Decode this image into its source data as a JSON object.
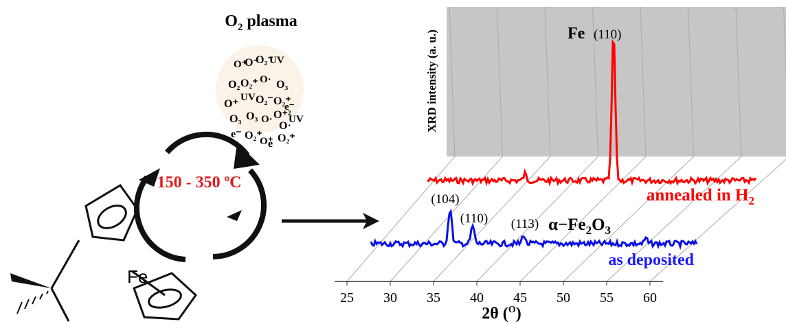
{
  "plasma": {
    "title": {
      "base": "O",
      "sub": "2",
      "rest": " plasma"
    },
    "species": [
      "O⁺",
      "O⁻",
      "O₂⁻",
      "UV",
      "O₂",
      "O₂⁺",
      "O·",
      "O₃",
      "O⁺",
      "UV",
      "O₂⁻",
      "O₂⁺",
      "e⁻",
      "O₃",
      "O₃",
      "O·",
      "O⁺²",
      "O·",
      "UV",
      "e⁻",
      "O₂⁺",
      "O⁺",
      "e",
      "O₂⁺"
    ]
  },
  "temperature": {
    "value": "150 - 350 ",
    "sup": "o",
    "unit": "C"
  },
  "molecule": {
    "metal": "Fe"
  },
  "xrd": {
    "ylabel": "XRD intensity (a. u.)",
    "annealed": {
      "element": "Fe",
      "peak": "(110)",
      "label": {
        "base": "annealed in H",
        "sub": "2"
      }
    },
    "deposited": {
      "peaks": [
        "(104)",
        "(110)",
        "(113)"
      ],
      "phase": {
        "a": "α−Fe",
        "s1": "2",
        "b": "O",
        "s2": "3"
      },
      "label": "as deposited"
    },
    "xticks": [
      "25",
      "30",
      "35",
      "40",
      "45",
      "50",
      "55",
      "60"
    ],
    "xlabel": {
      "base": "2θ (",
      "sup": "O",
      "end": ")"
    }
  }
}
